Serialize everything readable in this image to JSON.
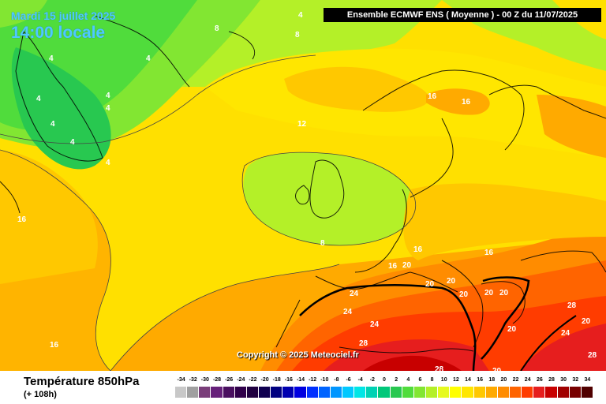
{
  "header": {
    "date": "Mardi 15 juillet 2025",
    "time": "14:00 locale",
    "model": "Ensemble ECMWF ENS  ( Moyenne )  -  00 Z du 11/07/2025"
  },
  "map": {
    "copyright": "Copyright © 2025 Meteociel.fr",
    "isotherm_labels": [
      "8",
      "4",
      "8",
      "4",
      "4",
      "4",
      "4",
      "4",
      "4",
      "4",
      "4",
      "16",
      "16",
      "12",
      "16",
      "8",
      "16",
      "20",
      "16",
      "16",
      "20",
      "20",
      "20",
      "20",
      "20",
      "24",
      "24",
      "24",
      "28",
      "28",
      "24",
      "20",
      "28",
      "20",
      "28",
      "20",
      "16"
    ]
  },
  "footer": {
    "parameter": "Température 850hPa",
    "lead_time": "(+ 108h)"
  },
  "legend": {
    "values": [
      "-34",
      "-32",
      "-30",
      "-28",
      "-26",
      "-24",
      "-22",
      "-20",
      "-18",
      "-16",
      "-14",
      "-12",
      "-10",
      "-8",
      "-6",
      "-4",
      "-2",
      "0",
      "2",
      "4",
      "6",
      "8",
      "10",
      "12",
      "14",
      "16",
      "18",
      "20",
      "22",
      "24",
      "26",
      "28",
      "30",
      "32",
      "34"
    ],
    "colors": [
      "#c8c8c8",
      "#a0a0a0",
      "#7a3e7a",
      "#66207a",
      "#4a1060",
      "#30004a",
      "#200040",
      "#100050",
      "#000080",
      "#0000b0",
      "#0000e0",
      "#0030ff",
      "#0064ff",
      "#0096ff",
      "#00c8ff",
      "#00e6e6",
      "#00d2b4",
      "#00c87a",
      "#28c850",
      "#50dc3c",
      "#82e632",
      "#b4f028",
      "#e6fa1e",
      "#ffff00",
      "#ffe600",
      "#ffc800",
      "#ffaa00",
      "#ff8c00",
      "#ff6400",
      "#ff3c00",
      "#e61e1e",
      "#c80000",
      "#a00000",
      "#780000",
      "#500000"
    ]
  }
}
